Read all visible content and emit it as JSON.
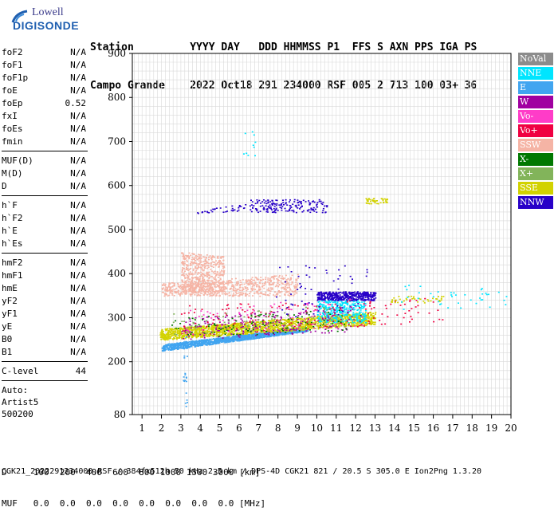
{
  "logo": {
    "line1": "Lowell",
    "line2": "DIGISONDE"
  },
  "header": {
    "labels": [
      "Station",
      "YYYY",
      "DAY",
      "DDD",
      "HHMMSS",
      "P1",
      "FFS",
      "S",
      "AXN",
      "PPS",
      "IGA",
      "PS"
    ],
    "values": [
      "Campo Grande",
      "2022",
      "Oct18",
      "291",
      "234000",
      "RSF",
      "005",
      "2",
      "713",
      "100",
      "03+",
      "36"
    ]
  },
  "params": {
    "group1": [
      {
        "label": "foF2",
        "value": "N/A"
      },
      {
        "label": "foF1",
        "value": "N/A"
      },
      {
        "label": "foF1p",
        "value": "N/A"
      },
      {
        "label": "foE",
        "value": "N/A"
      },
      {
        "label": "foEp",
        "value": "0.52"
      },
      {
        "label": "fxI",
        "value": "N/A"
      },
      {
        "label": "foEs",
        "value": "N/A"
      },
      {
        "label": "fmin",
        "value": "N/A"
      }
    ],
    "group2": [
      {
        "label": "MUF(D)",
        "value": "N/A"
      },
      {
        "label": "M(D)",
        "value": "N/A"
      },
      {
        "label": "D",
        "value": "N/A"
      }
    ],
    "group3": [
      {
        "label": "h`F",
        "value": "N/A"
      },
      {
        "label": "h`F2",
        "value": "N/A"
      },
      {
        "label": "h`E",
        "value": "N/A"
      },
      {
        "label": "h`Es",
        "value": "N/A"
      }
    ],
    "group4": [
      {
        "label": "hmF2",
        "value": "N/A"
      },
      {
        "label": "hmF1",
        "value": "N/A"
      },
      {
        "label": "hmE",
        "value": "N/A"
      },
      {
        "label": "yF2",
        "value": "N/A"
      },
      {
        "label": "yF1",
        "value": "N/A"
      },
      {
        "label": "yE",
        "value": "N/A"
      },
      {
        "label": "B0",
        "value": "N/A"
      },
      {
        "label": "B1",
        "value": "N/A"
      }
    ],
    "clevel": {
      "label": "C-level",
      "value": "44"
    },
    "auto": [
      "Auto:",
      "Artist5",
      "500200"
    ]
  },
  "legend": [
    {
      "name": "NoVal",
      "color": "#8c8c8c"
    },
    {
      "name": "NNE",
      "color": "#00e5ff"
    },
    {
      "name": "E",
      "color": "#41a5f0"
    },
    {
      "name": "W",
      "color": "#a000a0"
    },
    {
      "name": "Vo-",
      "color": "#ff3cc8"
    },
    {
      "name": "Vo+",
      "color": "#f00041"
    },
    {
      "name": "SSW",
      "color": "#f5b4a5"
    },
    {
      "name": "X-",
      "color": "#007800"
    },
    {
      "name": "X+",
      "color": "#82b45a"
    },
    {
      "name": "SSE",
      "color": "#d2d200"
    },
    {
      "name": "NNW",
      "color": "#2800c8"
    }
  ],
  "bottom": {
    "line1": "D     100  200  400  600  800 1000 1500 3000 [km]",
    "line2": "MUF   0.0  0.0  0.0  0.0  0.0  0.0  0.0  0.0 [MHz]"
  },
  "footer": "CGK21_2022291234000.RSF / 384fx512h 50 kHz 2.5 km / DPS-4D CGK21 821 / 20.5 S 305.0 E Ion2Png 1.3.20",
  "chart_data": {
    "type": "scatter",
    "x_ticks": [
      1,
      2,
      3,
      4,
      5,
      6,
      7,
      8,
      9,
      10,
      11,
      12,
      13,
      14,
      15,
      16,
      17,
      18,
      19,
      20
    ],
    "y_ticks": [
      80,
      200,
      300,
      400,
      500,
      600,
      700,
      800,
      900
    ],
    "xlim": [
      0.5,
      20
    ],
    "ylim": [
      80,
      900
    ],
    "grid": true,
    "legend_position": "right",
    "clusters": [
      {
        "series": "E",
        "x_range": [
          2.0,
          9.5
        ],
        "y_start": [
          240,
          225
        ],
        "y_end": [
          280,
          270
        ],
        "count": 1400
      },
      {
        "series": "SSE",
        "x_range": [
          1.9,
          13.0
        ],
        "y_start": [
          275,
          250
        ],
        "y_end": [
          315,
          285
        ],
        "count": 1800
      },
      {
        "series": "SSW",
        "x_range": [
          2.0,
          9.0
        ],
        "y_start": [
          380,
          350
        ],
        "y_end": [
          400,
          350
        ],
        "count": 700
      },
      {
        "series": "SSW",
        "x_range": [
          3.0,
          5.2
        ],
        "y_start": [
          450,
          360
        ],
        "y_end": [
          440,
          360
        ],
        "count": 500
      },
      {
        "series": "NNW",
        "x_range": [
          10.0,
          13.0
        ],
        "y_start": [
          360,
          340
        ],
        "y_end": [
          360,
          340
        ],
        "count": 450
      },
      {
        "series": "NNE",
        "x_range": [
          10.0,
          12.5
        ],
        "y_start": [
          340,
          290
        ],
        "y_end": [
          340,
          290
        ],
        "count": 350
      },
      {
        "series": "NNW",
        "x_range": [
          6.5,
          10.5
        ],
        "y_start": [
          570,
          540
        ],
        "y_end": [
          570,
          540
        ],
        "count": 170
      },
      {
        "series": "NNW",
        "x_range": [
          3.8,
          6.3
        ],
        "y_start": [
          548,
          535
        ],
        "y_end": [
          558,
          545
        ],
        "count": 35
      },
      {
        "series": "W",
        "x_range": [
          3.0,
          12.0
        ],
        "y_start": [
          300,
          250
        ],
        "y_end": [
          330,
          270
        ],
        "count": 220
      },
      {
        "series": "Vo+",
        "x_range": [
          3.0,
          16.5
        ],
        "y_start": [
          330,
          260
        ],
        "y_end": [
          350,
          290
        ],
        "count": 160
      },
      {
        "series": "Vo-",
        "x_range": [
          3.0,
          12.5
        ],
        "y_start": [
          320,
          260
        ],
        "y_end": [
          350,
          280
        ],
        "count": 90
      },
      {
        "series": "X-",
        "x_range": [
          2.5,
          11.5
        ],
        "y_start": [
          300,
          255
        ],
        "y_end": [
          320,
          270
        ],
        "count": 110
      },
      {
        "series": "X+",
        "x_range": [
          2.5,
          11.5
        ],
        "y_start": [
          310,
          260
        ],
        "y_end": [
          330,
          280
        ],
        "count": 90
      },
      {
        "series": "SSE",
        "x_range": [
          12.5,
          13.6
        ],
        "y_start": [
          572,
          560
        ],
        "y_end": [
          572,
          560
        ],
        "count": 45
      },
      {
        "series": "SSE",
        "x_range": [
          13.8,
          16.5
        ],
        "y_start": [
          350,
          335
        ],
        "y_end": [
          350,
          335
        ],
        "count": 40
      },
      {
        "series": "NNE",
        "x_range": [
          14.0,
          19.8
        ],
        "y_start": [
          375,
          320
        ],
        "y_end": [
          375,
          320
        ],
        "count": 40
      },
      {
        "series": "NNW",
        "x_range": [
          7.8,
          12.6
        ],
        "y_start": [
          420,
          300
        ],
        "y_end": [
          420,
          300
        ],
        "count": 60
      },
      {
        "series": "E",
        "x_range": [
          3.1,
          3.3
        ],
        "y_start": [
          260,
          90
        ],
        "y_end": [
          260,
          90
        ],
        "count": 25
      },
      {
        "series": "NNE",
        "x_range": [
          6.0,
          6.8
        ],
        "y_start": [
          730,
          660
        ],
        "y_end": [
          730,
          660
        ],
        "count": 10
      }
    ]
  }
}
